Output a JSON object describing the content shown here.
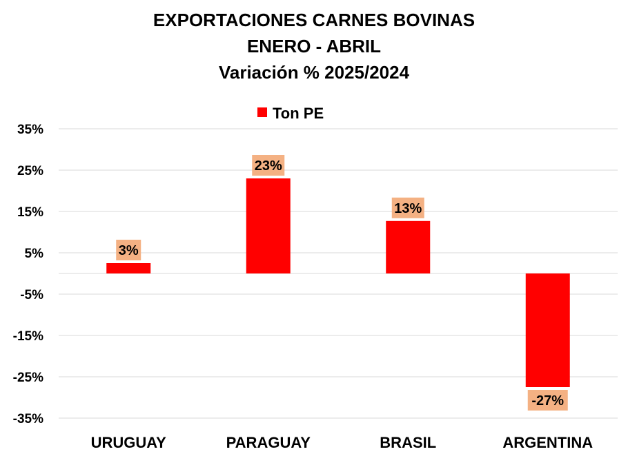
{
  "chart_data": {
    "type": "bar",
    "title_lines": [
      "EXPORTACIONES CARNES BOVINAS",
      "ENERO - ABRIL",
      "Variación % 2025/2024"
    ],
    "categories": [
      "URUGUAY",
      "PARAGUAY",
      "BRASIL",
      "ARGENTINA"
    ],
    "series": [
      {
        "name": "Ton PE",
        "values": [
          2.5,
          23,
          12.7,
          -27.5
        ],
        "labels": [
          "3%",
          "23%",
          "13%",
          "-27%"
        ],
        "color": "#ff0000"
      }
    ],
    "yticks": [
      "35%",
      "25%",
      "15%",
      "5%",
      "-5%",
      "-15%",
      "-25%",
      "-35%"
    ],
    "ytick_values": [
      35,
      25,
      15,
      5,
      -5,
      -15,
      -25,
      -35
    ],
    "ylim": [
      -35,
      35
    ],
    "grid": true,
    "legend_position": "top-center",
    "label_box_color": "#f4b183"
  }
}
